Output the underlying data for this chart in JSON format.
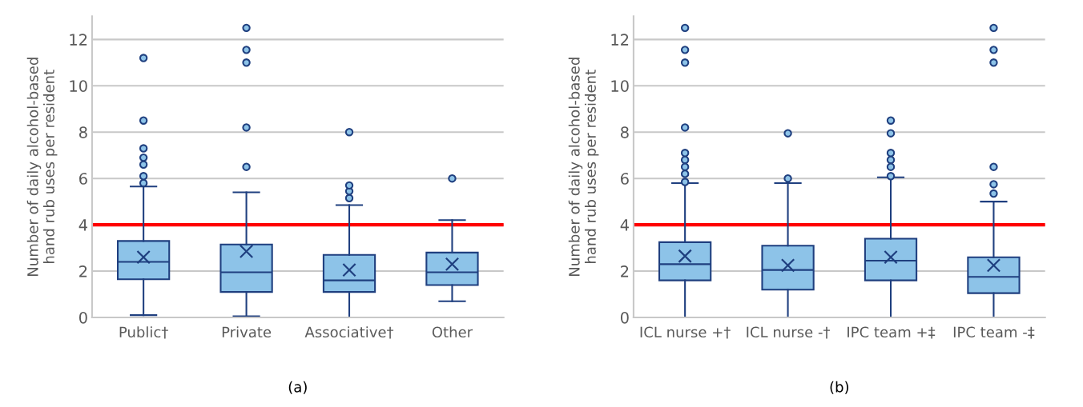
{
  "chart_data": [
    {
      "type": "box",
      "title": "(a)",
      "ylabel": "Number of daily alcohol-based\nhand rub uses per resident",
      "categories": [
        "Public†",
        "Private",
        "Associative†",
        "Other"
      ],
      "color": "#8dc3e8",
      "boxes": [
        {
          "low": 0.1,
          "q1": 1.65,
          "median": 2.4,
          "q3": 3.3,
          "high": 5.65,
          "mean": 2.6,
          "outliers": [
            5.8,
            6.1,
            6.6,
            6.9,
            7.3,
            8.5,
            11.2
          ]
        },
        {
          "low": 0.05,
          "q1": 1.1,
          "median": 1.95,
          "q3": 3.15,
          "high": 5.4,
          "mean": 2.85,
          "outliers": [
            6.5,
            8.2,
            11.0,
            11.55,
            12.5
          ]
        },
        {
          "low": 0,
          "q1": 1.1,
          "median": 1.6,
          "q3": 2.7,
          "high": 4.85,
          "mean": 2.05,
          "outliers": [
            5.15,
            5.45,
            5.7,
            8.0
          ]
        },
        {
          "low": 0.7,
          "q1": 1.4,
          "median": 1.95,
          "q3": 2.8,
          "high": 4.2,
          "mean": 2.3,
          "outliers": [
            6.0
          ]
        }
      ],
      "ylim": [
        0,
        13
      ],
      "yticks": [
        0,
        2,
        4,
        6,
        8,
        10,
        12
      ],
      "grid": "y",
      "ref_lines": [
        {
          "axis": "y",
          "value": 4,
          "color": "#ff0000"
        }
      ]
    },
    {
      "type": "box",
      "title": "(b)",
      "ylabel": "Number of daily alcohol-based\nhand rub uses per resident",
      "categories": [
        "ICL nurse +†",
        "ICL nurse -†",
        "IPC team +‡",
        "IPC team -‡"
      ],
      "color": "#8dc3e8",
      "boxes": [
        {
          "low": 0,
          "q1": 1.6,
          "median": 2.3,
          "q3": 3.25,
          "high": 5.8,
          "mean": 2.65,
          "outliers": [
            5.85,
            6.2,
            6.5,
            6.8,
            7.1,
            8.2,
            11.0,
            11.55,
            12.5
          ]
        },
        {
          "low": 0,
          "q1": 1.2,
          "median": 2.05,
          "q3": 3.1,
          "high": 5.8,
          "mean": 2.25,
          "outliers": [
            6.0,
            7.95
          ]
        },
        {
          "low": 0,
          "q1": 1.6,
          "median": 2.45,
          "q3": 3.4,
          "high": 6.05,
          "mean": 2.6,
          "outliers": [
            6.1,
            6.5,
            6.8,
            7.1,
            7.95,
            8.5
          ]
        },
        {
          "low": 0,
          "q1": 1.05,
          "median": 1.75,
          "q3": 2.6,
          "high": 5.0,
          "mean": 2.25,
          "outliers": [
            5.35,
            5.75,
            6.5,
            11.0,
            11.55,
            12.5
          ]
        }
      ],
      "ylim": [
        0,
        13
      ],
      "yticks": [
        0,
        2,
        4,
        6,
        8,
        10,
        12
      ],
      "grid": "y",
      "ref_lines": [
        {
          "axis": "y",
          "value": 4,
          "color": "#ff0000"
        }
      ]
    }
  ]
}
